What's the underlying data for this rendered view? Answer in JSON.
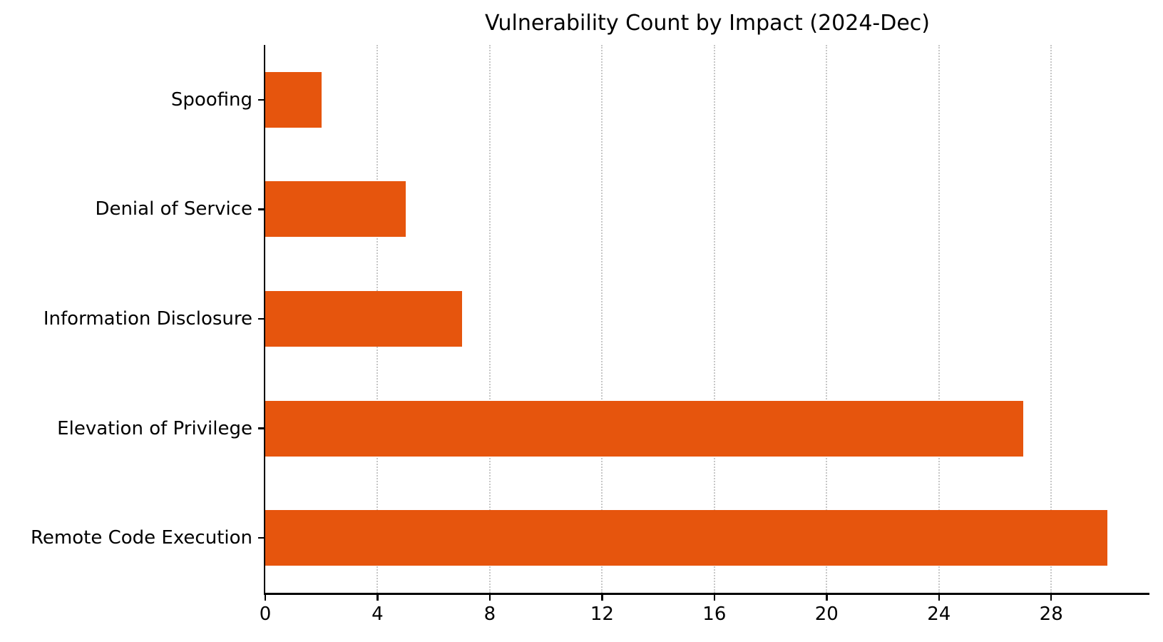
{
  "chart_data": {
    "type": "bar",
    "orientation": "horizontal",
    "title": "Vulnerability Count by Impact (2024-Dec)",
    "categories": [
      "Spoofing",
      "Denial of Service",
      "Information Disclosure",
      "Elevation of Privilege",
      "Remote Code Execution"
    ],
    "values": [
      2,
      5,
      7,
      27,
      30
    ],
    "xlabel": "",
    "ylabel": "",
    "x_ticks": [
      0,
      4,
      8,
      12,
      16,
      20,
      24,
      28
    ],
    "xlim": [
      0,
      31.5
    ],
    "grid": "vertical-dotted",
    "legend": "none",
    "colors": {
      "bar": "#e6550d",
      "grid": "#c7c7c7",
      "axis": "#000000",
      "text": "#000000",
      "background": "#ffffff"
    }
  }
}
